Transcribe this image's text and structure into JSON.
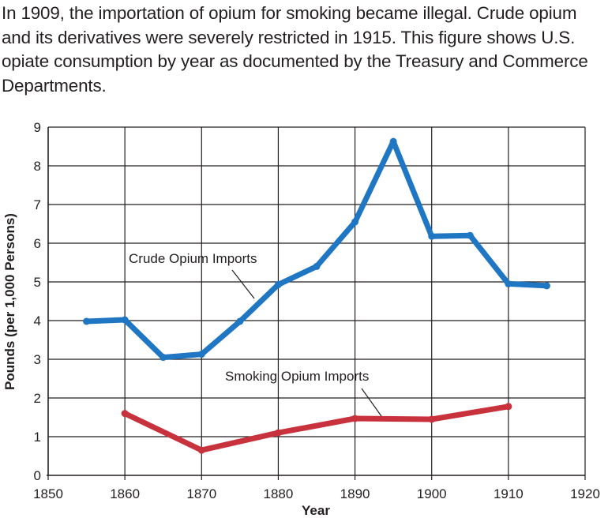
{
  "caption": "In 1909, the importation of opium for smoking became illegal. Crude opium and its derivatives were severely restricted in 1915. This figure shows U.S. opiate consumption by year as documented by the Treasury and Commerce Departments.",
  "chart_data": {
    "type": "line",
    "title": "",
    "xlabel": "Year",
    "ylabel": "Pounds (per 1,000 Persons)",
    "xlim": [
      1850,
      1920
    ],
    "ylim": [
      0,
      9
    ],
    "x_ticks": [
      1850,
      1860,
      1870,
      1880,
      1890,
      1900,
      1910,
      1920
    ],
    "y_ticks": [
      0,
      1,
      2,
      3,
      4,
      5,
      6,
      7,
      8,
      9
    ],
    "grid": true,
    "series": [
      {
        "name": "Crude Opium Imports",
        "color": "#1f77c4",
        "x": [
          1855,
          1860,
          1865,
          1870,
          1875,
          1880,
          1885,
          1890,
          1895,
          1900,
          1905,
          1910,
          1915
        ],
        "y": [
          3.98,
          4.02,
          3.05,
          3.13,
          3.98,
          4.93,
          5.4,
          6.55,
          8.63,
          6.18,
          6.2,
          4.95,
          4.9
        ]
      },
      {
        "name": "Smoking Opium Imports",
        "color": "#c8323c",
        "x": [
          1860,
          1870,
          1880,
          1890,
          1900,
          1910
        ],
        "y": [
          1.6,
          0.65,
          1.1,
          1.47,
          1.45,
          1.78
        ]
      }
    ]
  }
}
